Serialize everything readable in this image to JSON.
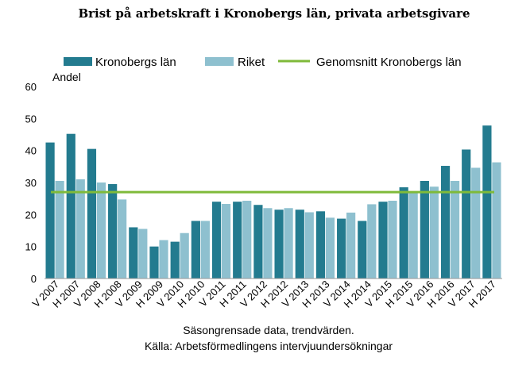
{
  "chart_data": {
    "type": "bar",
    "title": "Brist på arbetskraft i Kronobergs län, privata arbetsgivare",
    "ylabel": "Andel",
    "ylim": [
      0,
      60
    ],
    "yticks": [
      0,
      10,
      20,
      30,
      40,
      50,
      60
    ],
    "grid": false,
    "legend_placement": "top",
    "categories": [
      "V 2007",
      "H 2007",
      "V 2008",
      "H 2008",
      "V 2009",
      "H 2009",
      "V 2010",
      "H 2010",
      "V 2011",
      "H 2011",
      "V 2012",
      "H 2012",
      "V 2013",
      "H 2013",
      "V 2014",
      "H 2014",
      "V 2015",
      "H 2015",
      "V 2016",
      "H 2016",
      "V 2017",
      "H 2017"
    ],
    "series": [
      {
        "name": "Kronobergs län",
        "color": "#237b8f",
        "values": [
          42.5,
          45.2,
          40.5,
          29.5,
          16.0,
          10.0,
          11.5,
          18.0,
          24.0,
          24.0,
          23.0,
          21.5,
          21.5,
          21.0,
          18.7,
          18.0,
          24.0,
          28.5,
          30.5,
          35.2,
          40.3,
          47.8
        ]
      },
      {
        "name": "Riket",
        "color": "#8ec0cf",
        "values": [
          30.5,
          31.0,
          30.0,
          24.7,
          15.5,
          12.0,
          14.2,
          18.0,
          23.3,
          24.3,
          22.0,
          22.0,
          20.7,
          19.0,
          20.6,
          23.2,
          24.3,
          27.0,
          28.7,
          30.5,
          34.6,
          36.3
        ]
      }
    ],
    "reference_line": {
      "name": "Genomsnitt Kronobergs län",
      "color": "#7fba3a",
      "value": 27.0
    },
    "footer": [
      "Säsongrensade data, trendvärden.",
      "Källa: Arbetsförmedlingens intervjuundersökningar"
    ]
  }
}
